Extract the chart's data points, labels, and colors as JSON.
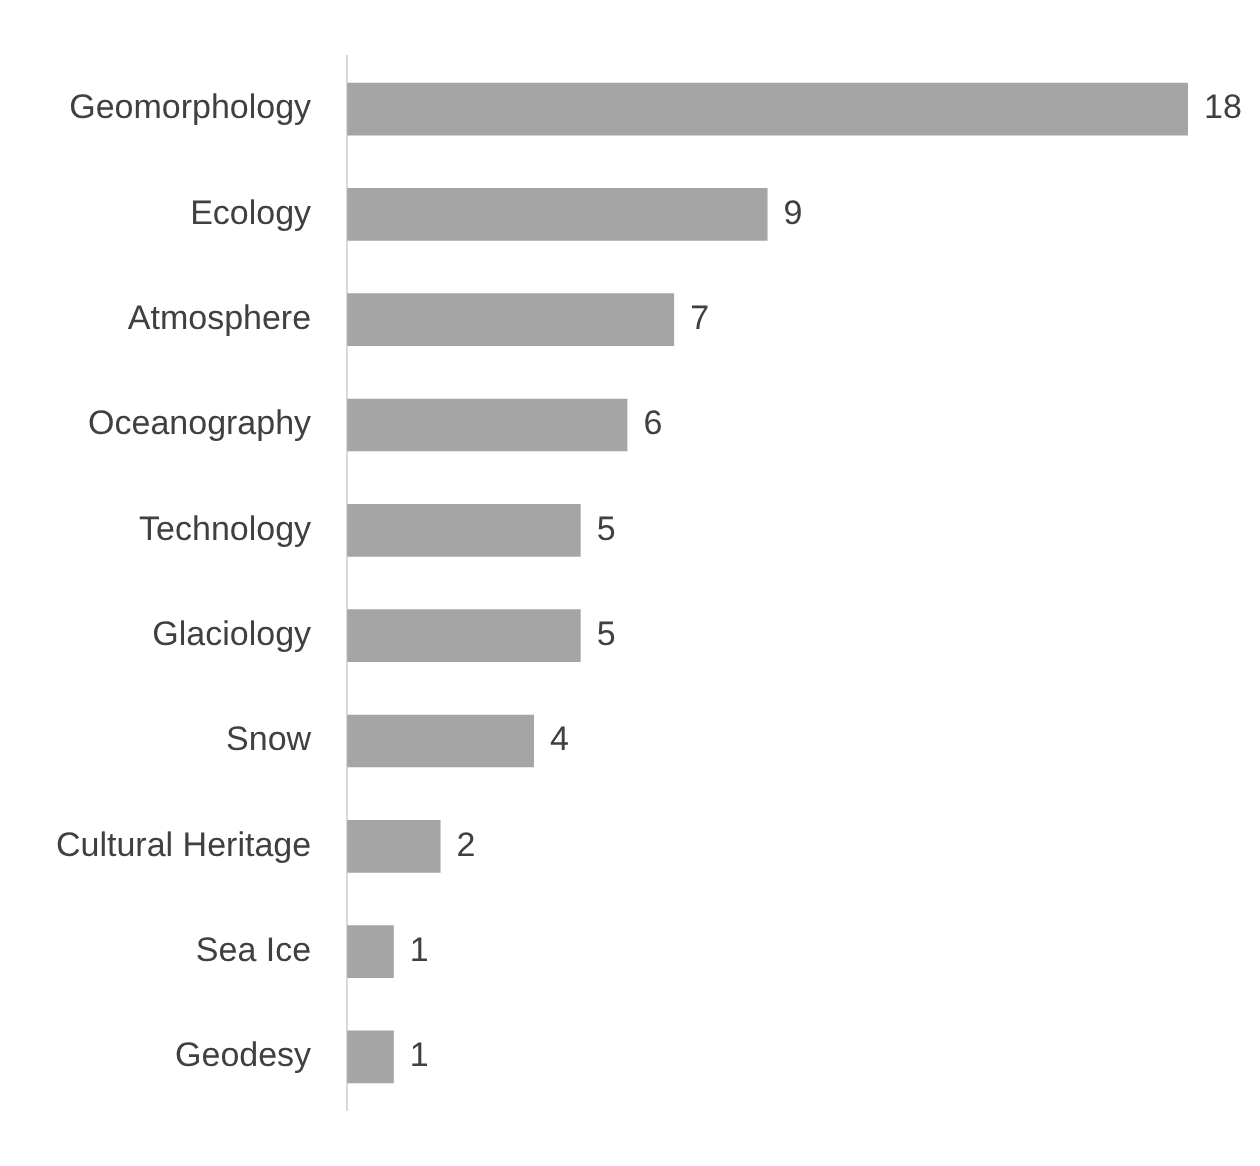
{
  "chart_data": {
    "type": "bar",
    "orientation": "horizontal",
    "categories": [
      "Geomorphology",
      "Ecology",
      "Atmosphere",
      "Oceanography",
      "Technology",
      "Glaciology",
      "Snow",
      "Cultural Heritage",
      "Sea Ice",
      "Geodesy"
    ],
    "values": [
      18,
      9,
      7,
      6,
      5,
      5,
      4,
      2,
      1,
      1
    ],
    "color": "#a5a5a5",
    "data_labels": true
  }
}
